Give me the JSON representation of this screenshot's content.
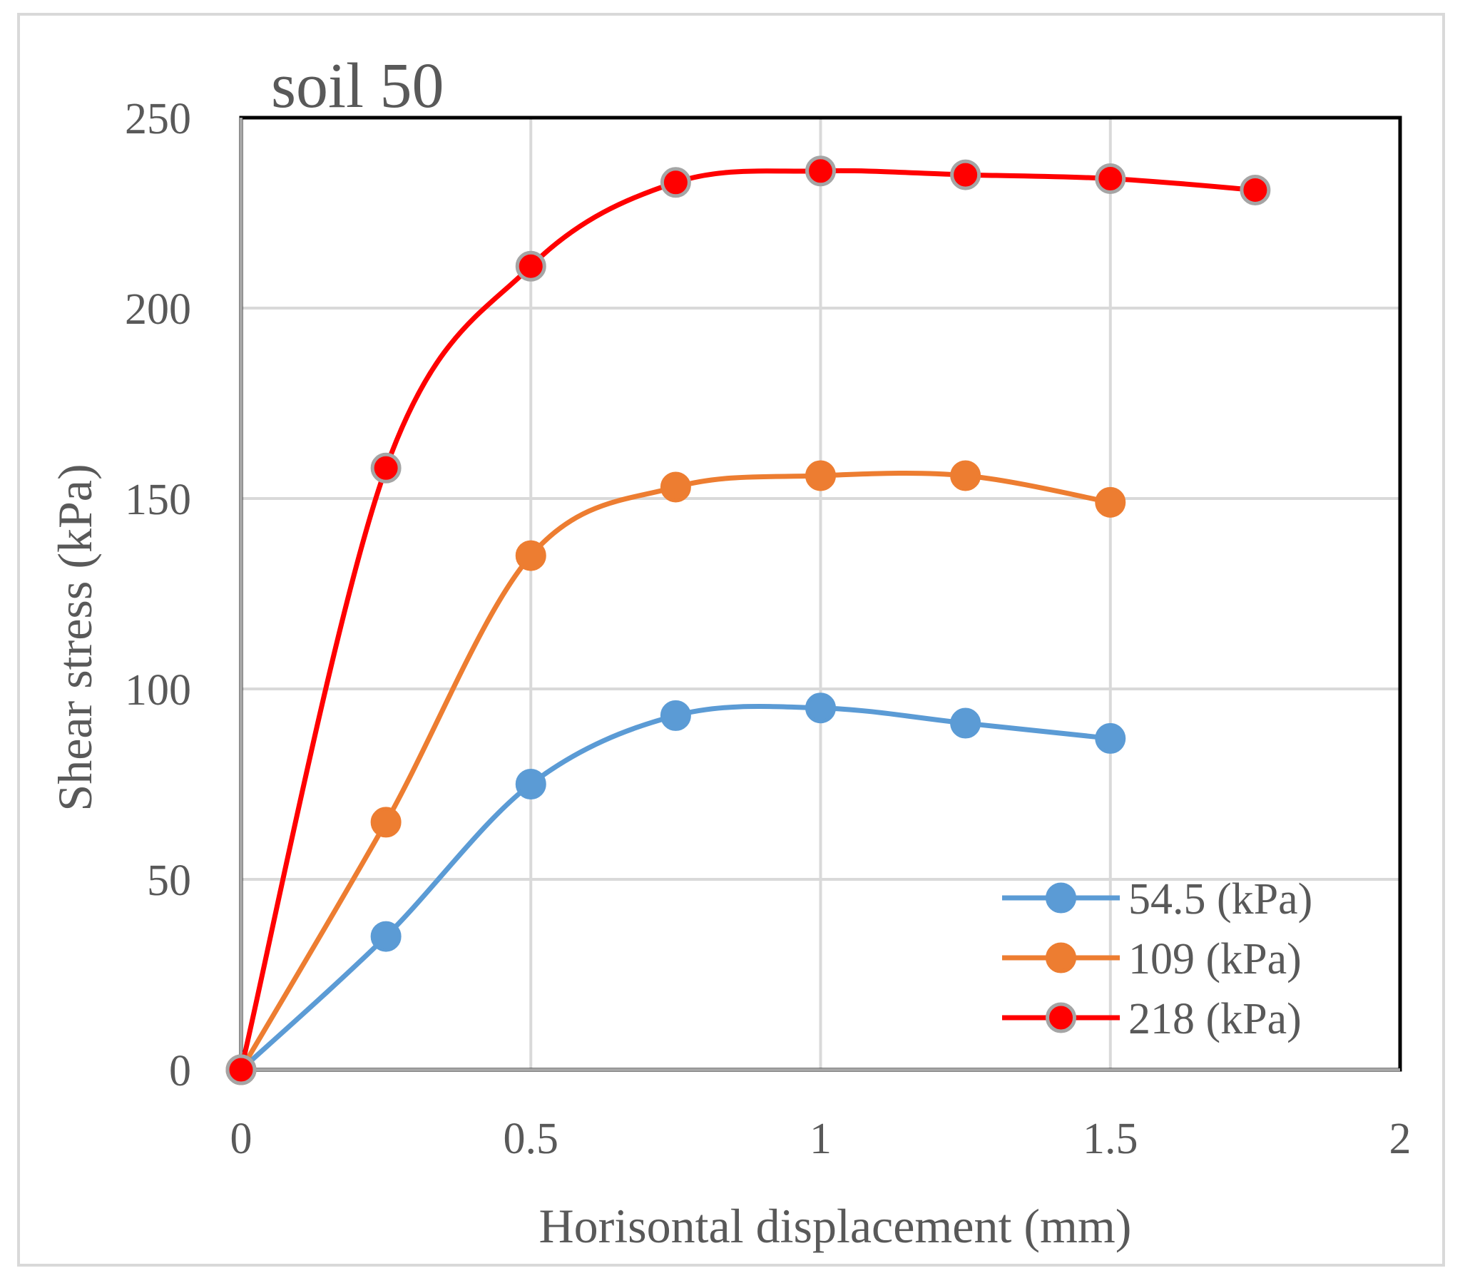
{
  "chart_data": {
    "type": "line",
    "title": "soil 50",
    "xlabel": "Horisontal displacement (mm)",
    "ylabel": "Shear stress (kPa)",
    "xlim": [
      0,
      2
    ],
    "ylim": [
      0,
      250
    ],
    "xticks": [
      0,
      0.5,
      1,
      1.5,
      2
    ],
    "xtick_labels": [
      "0",
      "0.5",
      "1",
      "1.5",
      "2"
    ],
    "yticks": [
      0,
      50,
      100,
      150,
      200,
      250
    ],
    "ytick_labels": [
      "0",
      "50",
      "100",
      "150",
      "200",
      "250"
    ],
    "grid": true,
    "legend_position": "bottom-right",
    "series": [
      {
        "name": "54.5 (kPa)",
        "color": "#5b9bd5",
        "marker_fill": "#5b9bd5",
        "marker_edge": "#5b9bd5",
        "x": [
          0,
          0.25,
          0.5,
          0.75,
          1,
          1.25,
          1.5
        ],
        "y": [
          0,
          35,
          75,
          93,
          95,
          91,
          87
        ]
      },
      {
        "name": "109 (kPa)",
        "color": "#ed7d31",
        "marker_fill": "#ed7d31",
        "marker_edge": "#ed7d31",
        "x": [
          0,
          0.25,
          0.5,
          0.75,
          1,
          1.25,
          1.5
        ],
        "y": [
          0,
          65,
          135,
          153,
          156,
          156,
          149
        ]
      },
      {
        "name": "218 (kPa)",
        "color": "#ff0000",
        "marker_fill": "#ff0000",
        "marker_edge": "#a5a5a5",
        "x": [
          0,
          0.25,
          0.5,
          0.75,
          1,
          1.25,
          1.5,
          1.75
        ],
        "y": [
          0,
          158,
          211,
          233,
          236,
          235,
          234,
          231
        ]
      }
    ]
  }
}
